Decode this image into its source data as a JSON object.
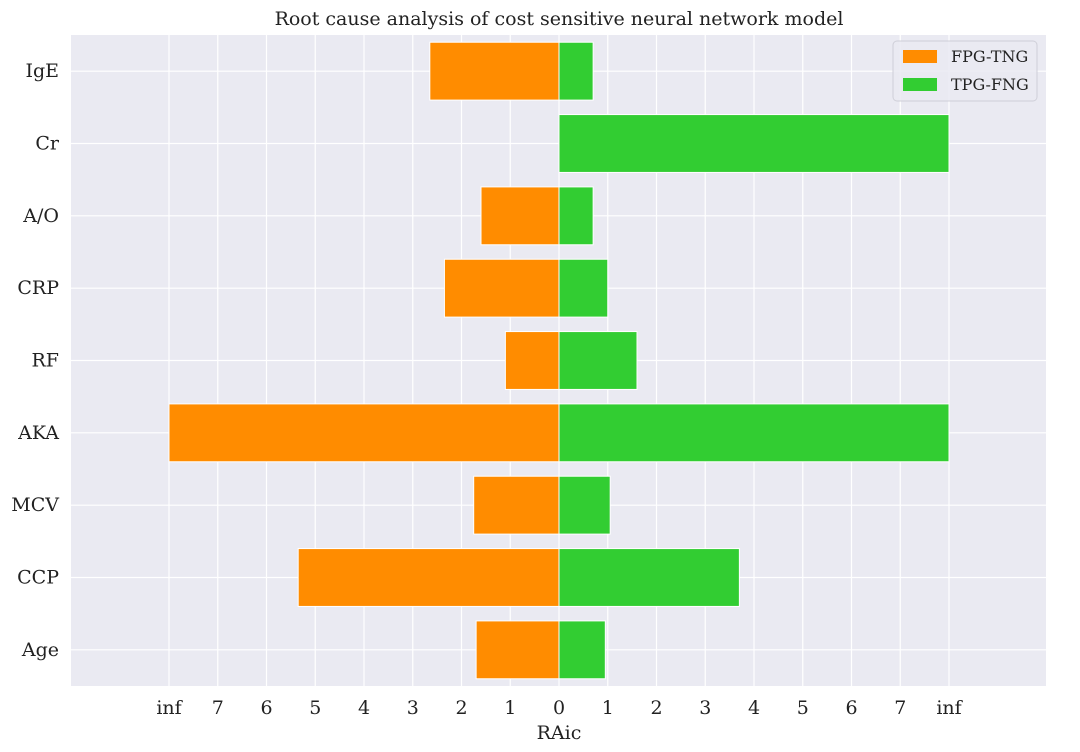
{
  "chart_data": {
    "type": "bar",
    "orientation": "horizontal",
    "layout": "diverging",
    "title": "Root cause analysis of cost sensitive neural network model",
    "xlabel": "RAic",
    "ylabel": "",
    "categories": [
      "IgE",
      "Cr",
      "A/O",
      "CRP",
      "RF",
      "AKA",
      "MCV",
      "CCP",
      "Age"
    ],
    "series": [
      {
        "name": "FPG-TNG",
        "direction": "left",
        "color": "#ff8c00",
        "values": [
          2.65,
          0,
          1.6,
          2.35,
          1.1,
          "inf",
          1.75,
          5.35,
          1.7
        ]
      },
      {
        "name": "TPG-FNG",
        "direction": "right",
        "color": "#32cd32",
        "values": [
          0.7,
          "inf",
          0.7,
          1.0,
          1.6,
          "inf",
          1.05,
          3.7,
          0.95
        ]
      }
    ],
    "x_ticks": [
      "inf",
      "7",
      "6",
      "5",
      "4",
      "3",
      "2",
      "1",
      "0",
      "1",
      "2",
      "3",
      "4",
      "5",
      "6",
      "7",
      "inf"
    ],
    "xlim": [
      -8,
      8
    ],
    "grid": true,
    "legend_position": "top-right",
    "background_color": "#eaeaf2",
    "grid_color": "#ffffff"
  }
}
